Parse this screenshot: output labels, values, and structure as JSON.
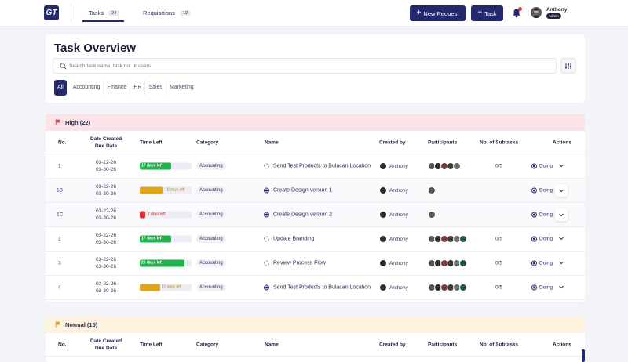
{
  "app": {
    "logo": "GT"
  },
  "nav": {
    "tabs": [
      {
        "label": "Tasks",
        "count": "24"
      },
      {
        "label": "Requisitions",
        "count": "12"
      }
    ],
    "new_request": "New Request",
    "task_button": "Task",
    "user": {
      "name": "Anthony",
      "role": "Admin"
    }
  },
  "overview": {
    "title": "Task Overview",
    "search_placeholder": "Search task name, task no. or users",
    "filters": [
      "All",
      "Accounting",
      "Finance",
      "HR",
      "Sales",
      "Marketing"
    ],
    "active_filter": "All"
  },
  "columns": {
    "no": "No.",
    "date_created": "Date Created",
    "due_date": "Due Date",
    "time_left": "Time Left",
    "category": "Category",
    "name": "Name",
    "created_by": "Created by",
    "participants": "Participants",
    "subtasks": "No. of Subtasks",
    "actions": "Actions"
  },
  "sections": {
    "high": {
      "label": "High (22)",
      "color": "#e63946",
      "rows": [
        {
          "no": "1",
          "created": "03-22-26",
          "due": "03-30-26",
          "time_left": "17 days left",
          "fill": 0.6,
          "bar_color": "#22b14c",
          "category": "Accounting",
          "status": "todo",
          "name": "Send Test Products to Bulacan Location",
          "created_by": "Anthony",
          "participants": 5,
          "subtasks": "0/5",
          "action": "Doing"
        },
        {
          "no": "1B",
          "created": "03-22-26",
          "due": "03-30-26",
          "time_left": "10 days left",
          "fill": 0.45,
          "bar_color": "#e0a41b",
          "category": "Accounting",
          "status": "doing",
          "name": "Create Design version 1",
          "created_by": "Anthony",
          "participants": 1,
          "subtasks": "",
          "action": "Doing"
        },
        {
          "no": "1C",
          "created": "03-22-26",
          "due": "03-30-26",
          "time_left": "2 days left",
          "fill": 0.1,
          "bar_color": "#e03131",
          "category": "Accounting",
          "status": "doing",
          "name": "Create Design version 2",
          "created_by": "Anthony",
          "participants": 1,
          "subtasks": "",
          "action": "Doing"
        },
        {
          "no": "2",
          "created": "03-22-26",
          "due": "03-30-26",
          "time_left": "17 days left",
          "fill": 0.6,
          "bar_color": "#22b14c",
          "category": "Accounting",
          "status": "todo",
          "name": "Update Branding",
          "created_by": "Anthony",
          "participants": 6,
          "subtasks": "0/5",
          "action": "Doing"
        },
        {
          "no": "3",
          "created": "03-22-26",
          "due": "03-30-26",
          "time_left": "20 days left",
          "fill": 0.87,
          "bar_color": "#22b14c",
          "category": "Accounting",
          "status": "todo",
          "name": "Review Process Flow",
          "created_by": "Anthony",
          "participants": 6,
          "subtasks": "0/5",
          "action": "Doing"
        },
        {
          "no": "4",
          "created": "03-22-26",
          "due": "03-30-26",
          "time_left": "11 days left",
          "fill": 0.4,
          "bar_color": "#e0a41b",
          "category": "Accounting",
          "status": "doing",
          "name": "Send Test Products to Bulacan Location",
          "created_by": "Anthony",
          "participants": 6,
          "subtasks": "0/5",
          "action": "Doing"
        }
      ]
    },
    "normal": {
      "label": "Normal (15)",
      "color": "#e0a41b"
    }
  }
}
